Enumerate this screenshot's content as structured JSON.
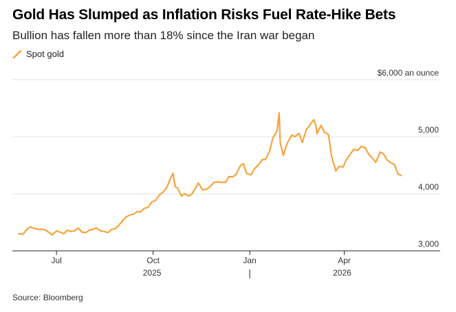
{
  "title": "Gold Has Slumped as Inflation Risks Fuel Rate-Hike Bets",
  "subtitle": "Bullion has fallen more than 18% since the Iran war began",
  "source": "Source: Bloomberg",
  "colors": {
    "accent": "#f7a33b",
    "grid": "#e3e3e3",
    "axis": "#222222"
  },
  "chart_data": {
    "type": "line",
    "title": "Gold Has Slumped as Inflation Risks Fuel Rate-Hike Bets",
    "subtitle": "Bullion has fallen more than 18% since the Iran war began",
    "unit_label": "$6,000 an ounce",
    "ylim": [
      3000,
      6000
    ],
    "yticks": [
      {
        "value": 6000,
        "label": "$6,000 an ounce"
      },
      {
        "value": 5000,
        "label": "5,000"
      },
      {
        "value": 4000,
        "label": "4,000"
      },
      {
        "value": 3000,
        "label": "3,000"
      }
    ],
    "xlim": [
      "2025-05-20",
      "2026-05-25"
    ],
    "xticks": [
      {
        "date": "2025-07-01",
        "label": "Jul"
      },
      {
        "date": "2025-10-01",
        "label": "Oct"
      },
      {
        "date": "2026-01-01",
        "label": "Jan"
      },
      {
        "date": "2026-04-01",
        "label": "Apr"
      }
    ],
    "year_labels": [
      {
        "date": "2025-09-30",
        "label": "2025"
      },
      {
        "date": "2026-03-30",
        "label": "2026"
      }
    ],
    "year_divider": "2026-01-01",
    "grid": true,
    "legend_position": "top-left",
    "series": [
      {
        "name": "Spot gold",
        "color": "#f7a33b",
        "points": [
          [
            "2025-05-26",
            3300
          ],
          [
            "2025-05-30",
            3290
          ],
          [
            "2025-06-03",
            3380
          ],
          [
            "2025-06-06",
            3420
          ],
          [
            "2025-06-10",
            3390
          ],
          [
            "2025-06-13",
            3380
          ],
          [
            "2025-06-17",
            3380
          ],
          [
            "2025-06-20",
            3370
          ],
          [
            "2025-06-24",
            3320
          ],
          [
            "2025-06-27",
            3280
          ],
          [
            "2025-07-01",
            3350
          ],
          [
            "2025-07-04",
            3330
          ],
          [
            "2025-07-08",
            3300
          ],
          [
            "2025-07-11",
            3360
          ],
          [
            "2025-07-15",
            3340
          ],
          [
            "2025-07-18",
            3350
          ],
          [
            "2025-07-22",
            3400
          ],
          [
            "2025-07-25",
            3330
          ],
          [
            "2025-07-29",
            3320
          ],
          [
            "2025-08-01",
            3360
          ],
          [
            "2025-08-05",
            3380
          ],
          [
            "2025-08-08",
            3400
          ],
          [
            "2025-08-12",
            3350
          ],
          [
            "2025-08-15",
            3340
          ],
          [
            "2025-08-19",
            3320
          ],
          [
            "2025-08-22",
            3370
          ],
          [
            "2025-08-26",
            3390
          ],
          [
            "2025-08-29",
            3440
          ],
          [
            "2025-09-02",
            3530
          ],
          [
            "2025-09-05",
            3590
          ],
          [
            "2025-09-09",
            3630
          ],
          [
            "2025-09-12",
            3640
          ],
          [
            "2025-09-16",
            3690
          ],
          [
            "2025-09-19",
            3680
          ],
          [
            "2025-09-23",
            3750
          ],
          [
            "2025-09-26",
            3760
          ],
          [
            "2025-09-30",
            3860
          ],
          [
            "2025-10-03",
            3880
          ],
          [
            "2025-10-07",
            3980
          ],
          [
            "2025-10-10",
            4020
          ],
          [
            "2025-10-14",
            4110
          ],
          [
            "2025-10-17",
            4250
          ],
          [
            "2025-10-20",
            4360
          ],
          [
            "2025-10-22",
            4120
          ],
          [
            "2025-10-24",
            4110
          ],
          [
            "2025-10-28",
            3960
          ],
          [
            "2025-10-31",
            4000
          ],
          [
            "2025-11-04",
            3960
          ],
          [
            "2025-11-07",
            4000
          ],
          [
            "2025-11-11",
            4120
          ],
          [
            "2025-11-13",
            4190
          ],
          [
            "2025-11-17",
            4070
          ],
          [
            "2025-11-21",
            4080
          ],
          [
            "2025-11-25",
            4140
          ],
          [
            "2025-11-28",
            4200
          ],
          [
            "2025-12-02",
            4210
          ],
          [
            "2025-12-05",
            4200
          ],
          [
            "2025-12-09",
            4200
          ],
          [
            "2025-12-12",
            4300
          ],
          [
            "2025-12-16",
            4300
          ],
          [
            "2025-12-19",
            4340
          ],
          [
            "2025-12-23",
            4490
          ],
          [
            "2025-12-26",
            4530
          ],
          [
            "2025-12-29",
            4360
          ],
          [
            "2026-01-02",
            4330
          ],
          [
            "2026-01-06",
            4450
          ],
          [
            "2026-01-09",
            4500
          ],
          [
            "2026-01-13",
            4600
          ],
          [
            "2026-01-16",
            4600
          ],
          [
            "2026-01-20",
            4750
          ],
          [
            "2026-01-23",
            4980
          ],
          [
            "2026-01-27",
            5100
          ],
          [
            "2026-01-29",
            5420
          ],
          [
            "2026-01-30",
            4900
          ],
          [
            "2026-02-02",
            4670
          ],
          [
            "2026-02-05",
            4850
          ],
          [
            "2026-02-06",
            4900
          ],
          [
            "2026-02-10",
            5030
          ],
          [
            "2026-02-13",
            5000
          ],
          [
            "2026-02-17",
            5060
          ],
          [
            "2026-02-20",
            4900
          ],
          [
            "2026-02-24",
            5130
          ],
          [
            "2026-02-27",
            5200
          ],
          [
            "2026-03-03",
            5300
          ],
          [
            "2026-03-05",
            5200
          ],
          [
            "2026-03-06",
            5050
          ],
          [
            "2026-03-10",
            5200
          ],
          [
            "2026-03-13",
            5080
          ],
          [
            "2026-03-17",
            5040
          ],
          [
            "2026-03-20",
            4650
          ],
          [
            "2026-03-24",
            4400
          ],
          [
            "2026-03-27",
            4480
          ],
          [
            "2026-03-31",
            4470
          ],
          [
            "2026-04-03",
            4600
          ],
          [
            "2026-04-07",
            4700
          ],
          [
            "2026-04-10",
            4780
          ],
          [
            "2026-04-14",
            4760
          ],
          [
            "2026-04-17",
            4830
          ],
          [
            "2026-04-21",
            4810
          ],
          [
            "2026-04-24",
            4700
          ],
          [
            "2026-04-28",
            4620
          ],
          [
            "2026-05-01",
            4550
          ],
          [
            "2026-05-05",
            4730
          ],
          [
            "2026-05-08",
            4710
          ],
          [
            "2026-05-12",
            4590
          ],
          [
            "2026-05-15",
            4550
          ],
          [
            "2026-05-19",
            4510
          ],
          [
            "2026-05-22",
            4350
          ],
          [
            "2026-05-25",
            4320
          ]
        ]
      }
    ]
  }
}
